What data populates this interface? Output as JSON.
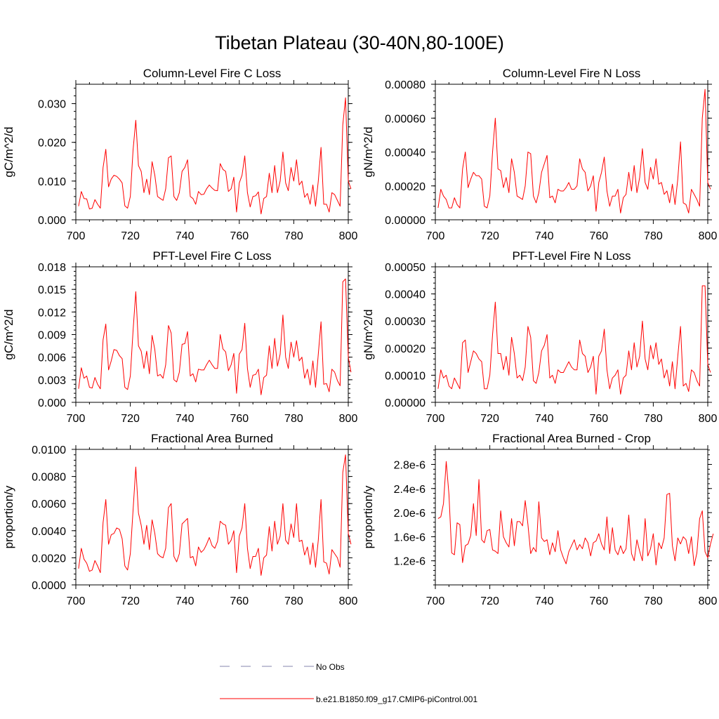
{
  "figure": {
    "title": "Tibetan Plateau (30-40N,80-100E)"
  },
  "legend": {
    "entries": [
      {
        "label": "No Obs",
        "color": "#8585ad",
        "dash": true
      },
      {
        "label": "b.e21.B1850.f09_g17.CMIP6-piControl.001",
        "color": "#ff0000",
        "dash": false
      }
    ]
  },
  "chart_data": [
    {
      "type": "line",
      "title": "Column-Level Fire C Loss",
      "xlabel": "",
      "ylabel": "gC/m^2/d",
      "xlim": [
        700,
        800
      ],
      "ylim": [
        0,
        0.035
      ],
      "xticks": [
        700,
        720,
        740,
        760,
        780,
        800
      ],
      "xtick_labels": [
        "700",
        "720",
        "740",
        "760",
        "780",
        "800"
      ],
      "yticks": [
        0,
        0.01,
        0.02,
        0.03
      ],
      "ytick_labels": [
        "0.000",
        "0.010",
        "0.020",
        "0.030"
      ],
      "yminor": 0.002,
      "series": [
        {
          "name": "b.e21.B1850.f09_g17.CMIP6-piControl.001",
          "color": "#ff0000",
          "x_start": 701,
          "x_step": 1,
          "values": [
            0.0035,
            0.0073,
            0.0055,
            0.0054,
            0.0028,
            0.003,
            0.0052,
            0.004,
            0.003,
            0.0135,
            0.0182,
            0.0085,
            0.0105,
            0.0115,
            0.0112,
            0.0105,
            0.0095,
            0.0036,
            0.003,
            0.006,
            0.018,
            0.0257,
            0.014,
            0.0125,
            0.007,
            0.0105,
            0.0065,
            0.015,
            0.0115,
            0.006,
            0.0055,
            0.005,
            0.008,
            0.016,
            0.0165,
            0.006,
            0.005,
            0.007,
            0.0125,
            0.0135,
            0.0155,
            0.006,
            0.0055,
            0.004,
            0.0073,
            0.0065,
            0.0066,
            0.008,
            0.009,
            0.0082,
            0.0076,
            0.0075,
            0.0145,
            0.013,
            0.0125,
            0.0073,
            0.008,
            0.011,
            0.002,
            0.0095,
            0.0115,
            0.0165,
            0.007,
            0.0033,
            0.006,
            0.0062,
            0.0072,
            0.0015,
            0.0055,
            0.006,
            0.012,
            0.007,
            0.014,
            0.007,
            0.01,
            0.0175,
            0.0095,
            0.0075,
            0.0135,
            0.01,
            0.0155,
            0.009,
            0.01,
            0.0058,
            0.0068,
            0.004,
            0.009,
            0.0035,
            0.01,
            0.0187,
            0.004,
            0.004,
            0.002,
            0.007,
            0.0065,
            0.005,
            0.0035,
            0.0245,
            0.0315,
            0.01,
            0.008
          ]
        }
      ]
    },
    {
      "type": "line",
      "title": "Column-Level Fire N Loss",
      "xlabel": "",
      "ylabel": "gN/m^2/d",
      "xlim": [
        700,
        800
      ],
      "ylim": [
        0,
        0.0008
      ],
      "xticks": [
        700,
        720,
        740,
        760,
        780,
        800
      ],
      "xtick_labels": [
        "700",
        "720",
        "740",
        "760",
        "780",
        "800"
      ],
      "yticks": [
        0,
        0.0002,
        0.0004,
        0.0006,
        0.0008
      ],
      "ytick_labels": [
        "0.00000",
        "0.00020",
        "0.00040",
        "0.00060",
        "0.00080"
      ],
      "yminor": 4e-05,
      "series": [
        {
          "name": "b.e21.B1850.f09_g17.CMIP6-piControl.001",
          "color": "#ff0000",
          "x_start": 701,
          "x_step": 1,
          "values": [
            7e-05,
            0.00018,
            0.00014,
            0.00012,
            7e-05,
            7e-05,
            0.00013,
            9e-05,
            7e-05,
            0.0003,
            0.0004,
            0.00019,
            0.00024,
            0.00028,
            0.00026,
            0.00026,
            0.00024,
            8e-05,
            7e-05,
            0.00014,
            0.0004,
            0.0006,
            0.0003,
            0.00029,
            0.00019,
            0.00025,
            0.00016,
            0.00036,
            0.00028,
            0.00014,
            0.00013,
            0.00012,
            0.0002,
            0.0004,
            0.00039,
            0.00014,
            0.0001,
            0.00016,
            0.00028,
            0.00033,
            0.00038,
            0.00013,
            0.00014,
            0.0001,
            0.00018,
            0.00017,
            0.00017,
            0.00019,
            0.00022,
            0.00018,
            0.00018,
            0.0002,
            0.00036,
            0.0003,
            0.00028,
            0.00017,
            0.0002,
            0.00026,
            5e-05,
            0.00022,
            0.00028,
            0.00037,
            0.00017,
            8e-05,
            0.00014,
            0.00014,
            0.00018,
            4e-05,
            0.00013,
            0.00015,
            0.00028,
            0.00017,
            0.00032,
            0.00016,
            0.00025,
            0.00042,
            0.00022,
            0.00018,
            0.00031,
            0.00024,
            0.00036,
            0.00021,
            0.00022,
            0.00015,
            0.00017,
            0.0001,
            0.00021,
            9e-05,
            0.00024,
            0.00046,
            0.0001,
            9e-05,
            4e-05,
            0.00018,
            0.00015,
            0.00012,
            8e-05,
            0.0006,
            0.00077,
            0.00022,
            0.00018
          ]
        }
      ]
    },
    {
      "type": "line",
      "title": "PFT-Level Fire C Loss",
      "xlabel": "",
      "ylabel": "gC/m^2/d",
      "xlim": [
        700,
        800
      ],
      "ylim": [
        0,
        0.018
      ],
      "xticks": [
        700,
        720,
        740,
        760,
        780,
        800
      ],
      "xtick_labels": [
        "700",
        "720",
        "740",
        "760",
        "780",
        "800"
      ],
      "yticks": [
        0,
        0.003,
        0.006,
        0.009,
        0.012,
        0.015,
        0.018
      ],
      "ytick_labels": [
        "0.000",
        "0.003",
        "0.006",
        "0.009",
        "0.012",
        "0.015",
        "0.018"
      ],
      "yminor": 0.0006,
      "series": [
        {
          "name": "b.e21.B1850.f09_g17.CMIP6-piControl.001",
          "color": "#ff0000",
          "x_start": 701,
          "x_step": 1,
          "values": [
            0.0018,
            0.0046,
            0.0032,
            0.0035,
            0.002,
            0.0019,
            0.0033,
            0.0024,
            0.0018,
            0.0083,
            0.0104,
            0.0043,
            0.0055,
            0.007,
            0.0069,
            0.0062,
            0.0058,
            0.002,
            0.0017,
            0.0035,
            0.0095,
            0.0147,
            0.0075,
            0.0068,
            0.0045,
            0.0068,
            0.0038,
            0.0089,
            0.007,
            0.0035,
            0.0037,
            0.0032,
            0.005,
            0.0102,
            0.0092,
            0.003,
            0.0027,
            0.004,
            0.0077,
            0.0078,
            0.0094,
            0.0035,
            0.0038,
            0.0027,
            0.0044,
            0.0043,
            0.0043,
            0.005,
            0.0056,
            0.005,
            0.0045,
            0.0045,
            0.009,
            0.0071,
            0.0067,
            0.0042,
            0.005,
            0.0065,
            0.0012,
            0.0064,
            0.007,
            0.0105,
            0.0045,
            0.002,
            0.0036,
            0.0037,
            0.0044,
            0.001,
            0.0033,
            0.0036,
            0.0075,
            0.0045,
            0.0085,
            0.0048,
            0.0064,
            0.0116,
            0.006,
            0.0045,
            0.008,
            0.006,
            0.0082,
            0.0055,
            0.006,
            0.0032,
            0.0044,
            0.0023,
            0.0055,
            0.002,
            0.0064,
            0.0107,
            0.0024,
            0.0025,
            0.0014,
            0.0044,
            0.004,
            0.0029,
            0.0022,
            0.016,
            0.0164,
            0.006,
            0.004
          ]
        }
      ]
    },
    {
      "type": "line",
      "title": "PFT-Level Fire N Loss",
      "xlabel": "",
      "ylabel": "gN/m^2/d",
      "xlim": [
        700,
        800
      ],
      "ylim": [
        0,
        0.0005
      ],
      "xticks": [
        700,
        720,
        740,
        760,
        780,
        800
      ],
      "xtick_labels": [
        "700",
        "720",
        "740",
        "760",
        "780",
        "800"
      ],
      "yticks": [
        0,
        0.0001,
        0.0002,
        0.0003,
        0.0004,
        0.0005
      ],
      "ytick_labels": [
        "0.00000",
        "0.00010",
        "0.00020",
        "0.00030",
        "0.00040",
        "0.00050"
      ],
      "yminor": 2e-05,
      "series": [
        {
          "name": "b.e21.B1850.f09_g17.CMIP6-piControl.001",
          "color": "#ff0000",
          "x_start": 701,
          "x_step": 1,
          "values": [
            5e-05,
            0.00012,
            9e-05,
            0.0001,
            6e-05,
            5e-05,
            9e-05,
            7e-05,
            5e-05,
            0.00022,
            0.00023,
            0.00011,
            0.00015,
            0.00019,
            0.00018,
            0.00016,
            0.00015,
            5e-05,
            5e-05,
            0.0001,
            0.00025,
            0.00037,
            0.00018,
            0.00018,
            0.00012,
            0.00017,
            0.0001,
            0.00024,
            0.00018,
            9e-05,
            0.0001,
            8e-05,
            0.00013,
            0.00028,
            0.00024,
            8e-05,
            7e-05,
            0.00011,
            0.00019,
            0.00021,
            0.00025,
            9e-05,
            0.0001,
            7e-05,
            0.00012,
            0.00011,
            0.00011,
            0.00013,
            0.00015,
            0.00013,
            0.00012,
            0.00012,
            0.00023,
            0.00018,
            0.00017,
            0.00011,
            0.00013,
            0.00017,
            3e-05,
            0.00017,
            0.00019,
            0.00027,
            0.00012,
            5e-05,
            9e-05,
            0.0001,
            0.00012,
            3e-05,
            9e-05,
            0.0001,
            0.00019,
            0.00012,
            0.00022,
            0.00013,
            0.00017,
            0.0003,
            0.00016,
            0.00012,
            0.00021,
            0.00016,
            0.00022,
            0.00014,
            0.00016,
            9e-05,
            0.00012,
            6e-05,
            0.00015,
            5e-05,
            0.00017,
            0.00028,
            6e-05,
            7e-05,
            4e-05,
            0.00012,
            0.00011,
            8e-05,
            6e-05,
            0.00043,
            0.00043,
            0.00014,
            0.00011
          ]
        }
      ]
    },
    {
      "type": "line",
      "title": "Fractional Area Burned",
      "xlabel": "",
      "ylabel": "proportion/y",
      "xlim": [
        700,
        800
      ],
      "ylim": [
        0,
        0.01
      ],
      "xticks": [
        700,
        720,
        740,
        760,
        780,
        800
      ],
      "xtick_labels": [
        "700",
        "720",
        "740",
        "760",
        "780",
        "800"
      ],
      "yticks": [
        0,
        0.002,
        0.004,
        0.006,
        0.008,
        0.01
      ],
      "ytick_labels": [
        "0.0000",
        "0.0020",
        "0.0040",
        "0.0060",
        "0.0080",
        "0.0100"
      ],
      "yminor": 0.0004,
      "series": [
        {
          "name": "b.e21.B1850.f09_g17.CMIP6-piControl.001",
          "color": "#ff0000",
          "x_start": 701,
          "x_step": 1,
          "values": [
            0.0012,
            0.0027,
            0.0019,
            0.0016,
            0.001,
            0.0011,
            0.0018,
            0.0014,
            0.0009,
            0.0046,
            0.0063,
            0.003,
            0.0037,
            0.0038,
            0.0042,
            0.0041,
            0.0034,
            0.0014,
            0.0011,
            0.0023,
            0.0055,
            0.0087,
            0.0053,
            0.0044,
            0.003,
            0.0044,
            0.0026,
            0.0048,
            0.0038,
            0.0023,
            0.0021,
            0.002,
            0.0027,
            0.0057,
            0.006,
            0.0021,
            0.0017,
            0.0023,
            0.0045,
            0.0047,
            0.0049,
            0.002,
            0.0021,
            0.0014,
            0.0028,
            0.0024,
            0.0026,
            0.003,
            0.0035,
            0.0029,
            0.0027,
            0.0032,
            0.0047,
            0.0045,
            0.0044,
            0.003,
            0.0033,
            0.004,
            0.0009,
            0.0036,
            0.0042,
            0.006,
            0.0027,
            0.0012,
            0.0021,
            0.0021,
            0.0027,
            0.0007,
            0.002,
            0.0022,
            0.0043,
            0.0025,
            0.0047,
            0.003,
            0.0036,
            0.006,
            0.0033,
            0.003,
            0.0045,
            0.0035,
            0.006,
            0.0032,
            0.0033,
            0.0022,
            0.0028,
            0.0015,
            0.0031,
            0.0013,
            0.0033,
            0.0063,
            0.0017,
            0.0016,
            0.0008,
            0.0026,
            0.0023,
            0.002,
            0.0013,
            0.0083,
            0.0096,
            0.0038,
            0.003
          ]
        }
      ]
    },
    {
      "type": "line",
      "title": "Fractional Area Burned - Crop",
      "xlabel": "",
      "ylabel": "proportion/y",
      "xlim": [
        700,
        800
      ],
      "ylim": [
        8e-07,
        3.05e-06
      ],
      "xticks": [
        700,
        720,
        740,
        760,
        780,
        800
      ],
      "xtick_labels": [
        "700",
        "720",
        "740",
        "760",
        "780",
        "800"
      ],
      "yticks": [
        1.2e-06,
        1.6e-06,
        2e-06,
        2.4e-06,
        2.8e-06
      ],
      "ytick_labels": [
        "1.2e-6",
        "1.6e-6",
        "2.0e-6",
        "2.4e-6",
        "2.8e-6"
      ],
      "yminor": 8e-08,
      "series": [
        {
          "name": "b.e21.B1850.f09_g17.CMIP6-piControl.001",
          "color": "#ff0000",
          "x_start": 701,
          "x_step": 1,
          "values": [
            1.9e-06,
            1.93e-06,
            2.15e-06,
            2.85e-06,
            2.3e-06,
            1.33e-06,
            1.3e-06,
            1.83e-06,
            1.8e-06,
            1.17e-06,
            1.45e-06,
            1.48e-06,
            1.62e-06,
            2.15e-06,
            1.62e-06,
            2.55e-06,
            1.55e-06,
            1.5e-06,
            1.7e-06,
            1.72e-06,
            1.38e-06,
            1.36e-06,
            1.32e-06,
            2.03e-06,
            1.6e-06,
            1.5e-06,
            1.43e-06,
            1.9e-06,
            1.45e-06,
            1.85e-06,
            1.85e-06,
            1.78e-06,
            2.2e-06,
            1.8e-06,
            1.32e-06,
            1.42e-06,
            1.35e-06,
            2.18e-06,
            1.58e-06,
            1.52e-06,
            1.55e-06,
            1.3e-06,
            1.5e-06,
            1.35e-06,
            1.7e-06,
            1.38e-06,
            1.25e-06,
            1.15e-06,
            1.35e-06,
            1.45e-06,
            1.55e-06,
            1.38e-06,
            1.47e-06,
            1.4e-06,
            1.58e-06,
            1.5e-06,
            1.28e-06,
            1.5e-06,
            1.53e-06,
            1.65e-06,
            1.48e-06,
            1.38e-06,
            1.93e-06,
            1.32e-06,
            1.75e-06,
            1.38e-06,
            1.3e-06,
            1.45e-06,
            1.32e-06,
            1.4e-06,
            1.96e-06,
            1.32e-06,
            1.2e-06,
            1.55e-06,
            1.36e-06,
            1.2e-06,
            1.9e-06,
            1.28e-06,
            1.4e-06,
            1.65e-06,
            1.13e-06,
            1.5e-06,
            1.4e-06,
            1.58e-06,
            2.3e-06,
            2.32e-06,
            1.45e-06,
            1.2e-06,
            1.58e-06,
            1.48e-06,
            1.6e-06,
            1.55e-06,
            1.32e-06,
            1.6e-06,
            1.12e-06,
            1.33e-06,
            1.9e-06,
            2.03e-06,
            1.35e-06,
            1.25e-06,
            1.48e-06,
            1.65e-06
          ]
        }
      ]
    }
  ]
}
